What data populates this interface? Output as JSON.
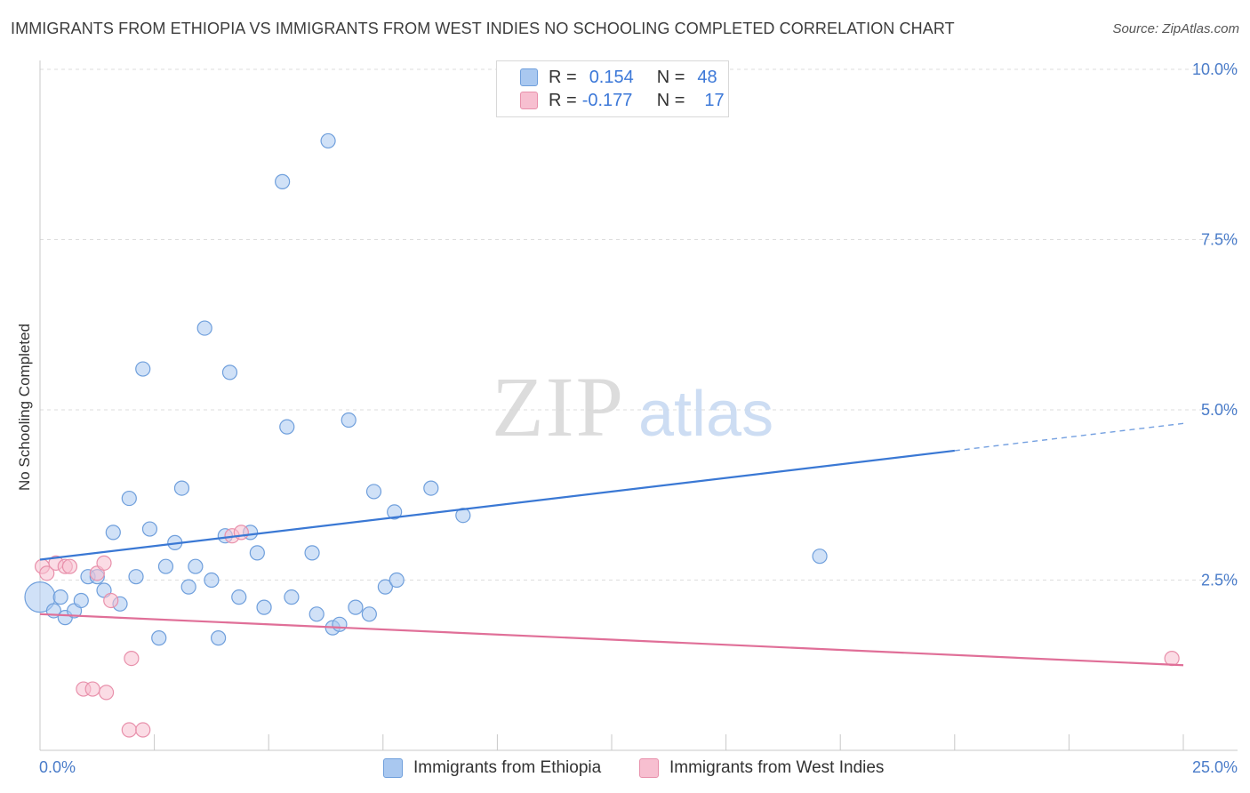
{
  "title": "IMMIGRANTS FROM ETHIOPIA VS IMMIGRANTS FROM WEST INDIES NO SCHOOLING COMPLETED CORRELATION CHART",
  "source": "Source: ZipAtlas.com",
  "colors": {
    "ethiopia_fill": "#a9c8f0",
    "ethiopia_stroke": "#6f9fdc",
    "ethiopia_line": "#3a78d4",
    "westindies_fill": "#f7bfd0",
    "westindies_stroke": "#e890ab",
    "westindies_line": "#e06f98",
    "tick": "#4a7cc9",
    "grid": "#dddddd"
  },
  "legend": {
    "rows": [
      {
        "r_label": "R =",
        "r_value": "0.154",
        "n_label": "N =",
        "n_value": "48"
      },
      {
        "r_label": "R =",
        "r_value": "-0.177",
        "n_label": "N =",
        "n_value": "17"
      }
    ]
  },
  "watermark": {
    "zip": "ZIP",
    "atlas": "atlas"
  },
  "chart_data": {
    "type": "scatter",
    "title": "IMMIGRANTS FROM ETHIOPIA VS IMMIGRANTS FROM WEST INDIES NO SCHOOLING COMPLETED CORRELATION CHART",
    "xlabel": "",
    "ylabel": "No Schooling Completed",
    "xlim": [
      0,
      25
    ],
    "ylim": [
      0,
      10
    ],
    "x_tick_labels": [
      "0.0%",
      "25.0%"
    ],
    "y_ticks": [
      2.5,
      5.0,
      7.5,
      10.0
    ],
    "y_tick_labels": [
      "2.5%",
      "5.0%",
      "7.5%",
      "10.0%"
    ],
    "grid": true,
    "series": [
      {
        "name": "Immigrants from Ethiopia",
        "points": [
          [
            0.0,
            2.25
          ],
          [
            0.3,
            2.05
          ],
          [
            0.45,
            2.25
          ],
          [
            0.55,
            1.95
          ],
          [
            0.75,
            2.05
          ],
          [
            0.9,
            2.2
          ],
          [
            1.05,
            2.55
          ],
          [
            1.25,
            2.55
          ],
          [
            1.4,
            2.35
          ],
          [
            1.6,
            3.2
          ],
          [
            1.75,
            2.15
          ],
          [
            1.95,
            3.7
          ],
          [
            2.1,
            2.55
          ],
          [
            2.25,
            5.6
          ],
          [
            2.4,
            3.25
          ],
          [
            2.6,
            1.65
          ],
          [
            2.75,
            2.7
          ],
          [
            2.95,
            3.05
          ],
          [
            3.1,
            3.85
          ],
          [
            3.25,
            2.4
          ],
          [
            3.4,
            2.7
          ],
          [
            3.6,
            6.2
          ],
          [
            3.75,
            2.5
          ],
          [
            3.9,
            1.65
          ],
          [
            4.05,
            3.15
          ],
          [
            4.15,
            5.55
          ],
          [
            4.35,
            2.25
          ],
          [
            4.6,
            3.2
          ],
          [
            4.75,
            2.9
          ],
          [
            4.9,
            2.1
          ],
          [
            5.3,
            8.35
          ],
          [
            5.4,
            4.75
          ],
          [
            5.5,
            2.25
          ],
          [
            5.95,
            2.9
          ],
          [
            6.05,
            2.0
          ],
          [
            6.3,
            8.95
          ],
          [
            6.4,
            1.8
          ],
          [
            6.55,
            1.85
          ],
          [
            6.75,
            4.85
          ],
          [
            6.9,
            2.1
          ],
          [
            7.2,
            2.0
          ],
          [
            7.3,
            3.8
          ],
          [
            7.55,
            2.4
          ],
          [
            7.75,
            3.5
          ],
          [
            7.8,
            2.5
          ],
          [
            8.55,
            3.85
          ],
          [
            9.25,
            3.45
          ],
          [
            17.05,
            2.85
          ]
        ],
        "trend": {
          "x0": 0,
          "y0": 2.8,
          "x1": 25,
          "y1": 4.8,
          "solid_until_x": 20
        }
      },
      {
        "name": "Immigrants from West Indies",
        "points": [
          [
            0.05,
            2.7
          ],
          [
            0.15,
            2.6
          ],
          [
            0.35,
            2.75
          ],
          [
            0.55,
            2.7
          ],
          [
            0.65,
            2.7
          ],
          [
            0.95,
            0.9
          ],
          [
            1.15,
            0.9
          ],
          [
            1.25,
            2.6
          ],
          [
            1.4,
            2.75
          ],
          [
            1.45,
            0.85
          ],
          [
            1.55,
            2.2
          ],
          [
            1.95,
            0.3
          ],
          [
            2.0,
            1.35
          ],
          [
            2.25,
            0.3
          ],
          [
            4.2,
            3.15
          ],
          [
            4.4,
            3.2
          ],
          [
            24.75,
            1.35
          ]
        ],
        "trend": {
          "x0": 0,
          "y0": 2.0,
          "x1": 25,
          "y1": 1.25
        }
      }
    ]
  }
}
